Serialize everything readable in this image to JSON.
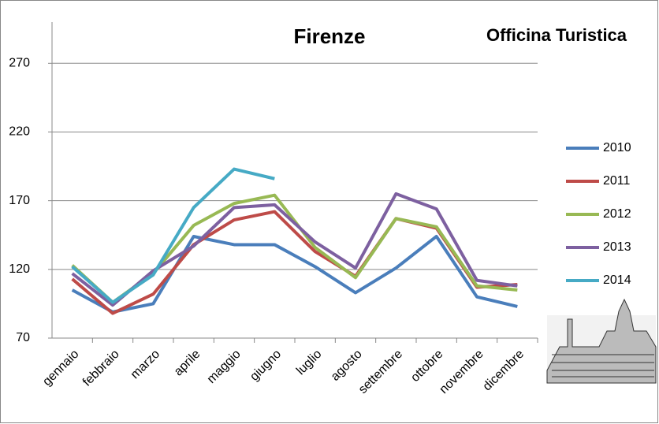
{
  "chart_data": {
    "type": "line",
    "title": "Firenze",
    "logo": "Officina Turistica",
    "categories": [
      "gennaio",
      "febbraio",
      "marzo",
      "aprile",
      "maggio",
      "giugno",
      "luglio",
      "agosto",
      "settembre",
      "ottobre",
      "novembre",
      "dicembre"
    ],
    "series": [
      {
        "name": "2010",
        "color": "#4a7ebb",
        "values": [
          105,
          89,
          95,
          144,
          138,
          138,
          122,
          103,
          121,
          144,
          100,
          93
        ]
      },
      {
        "name": "2011",
        "color": "#be4b48",
        "values": [
          113,
          88,
          102,
          138,
          156,
          162,
          133,
          115,
          157,
          150,
          107,
          109
        ]
      },
      {
        "name": "2012",
        "color": "#98b954",
        "values": [
          123,
          96,
          117,
          152,
          168,
          174,
          136,
          114,
          157,
          151,
          108,
          105
        ]
      },
      {
        "name": "2013",
        "color": "#7d60a0",
        "values": [
          117,
          94,
          119,
          137,
          165,
          167,
          140,
          121,
          175,
          164,
          112,
          108
        ]
      },
      {
        "name": "2014",
        "color": "#46aac5",
        "values": [
          122,
          96,
          116,
          165,
          193,
          186,
          null,
          null,
          null,
          null,
          null,
          null
        ]
      }
    ],
    "ylim": [
      70,
      300
    ],
    "yticks": [
      70,
      120,
      170,
      220,
      270
    ],
    "grid": true,
    "legend": "right"
  }
}
